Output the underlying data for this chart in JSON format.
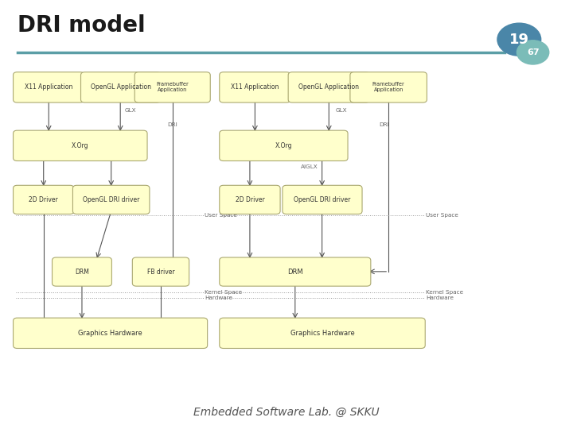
{
  "title": "DRI model",
  "slide_num": "19",
  "slide_total": "67",
  "bg_color": "#ffffff",
  "title_color": "#1a1a1a",
  "header_line_color": "#5b9ea6",
  "box_fill": "#ffffcc",
  "box_edge": "#aaa870",
  "box_text_color": "#333333",
  "arrow_color": "#555555",
  "label_color": "#666666",
  "dashed_color": "#999999",
  "footer_text": "Embedded Software Lab. @ SKKU",
  "circle_big_color": "#4a86a8",
  "circle_small_color": "#7bbcb8"
}
